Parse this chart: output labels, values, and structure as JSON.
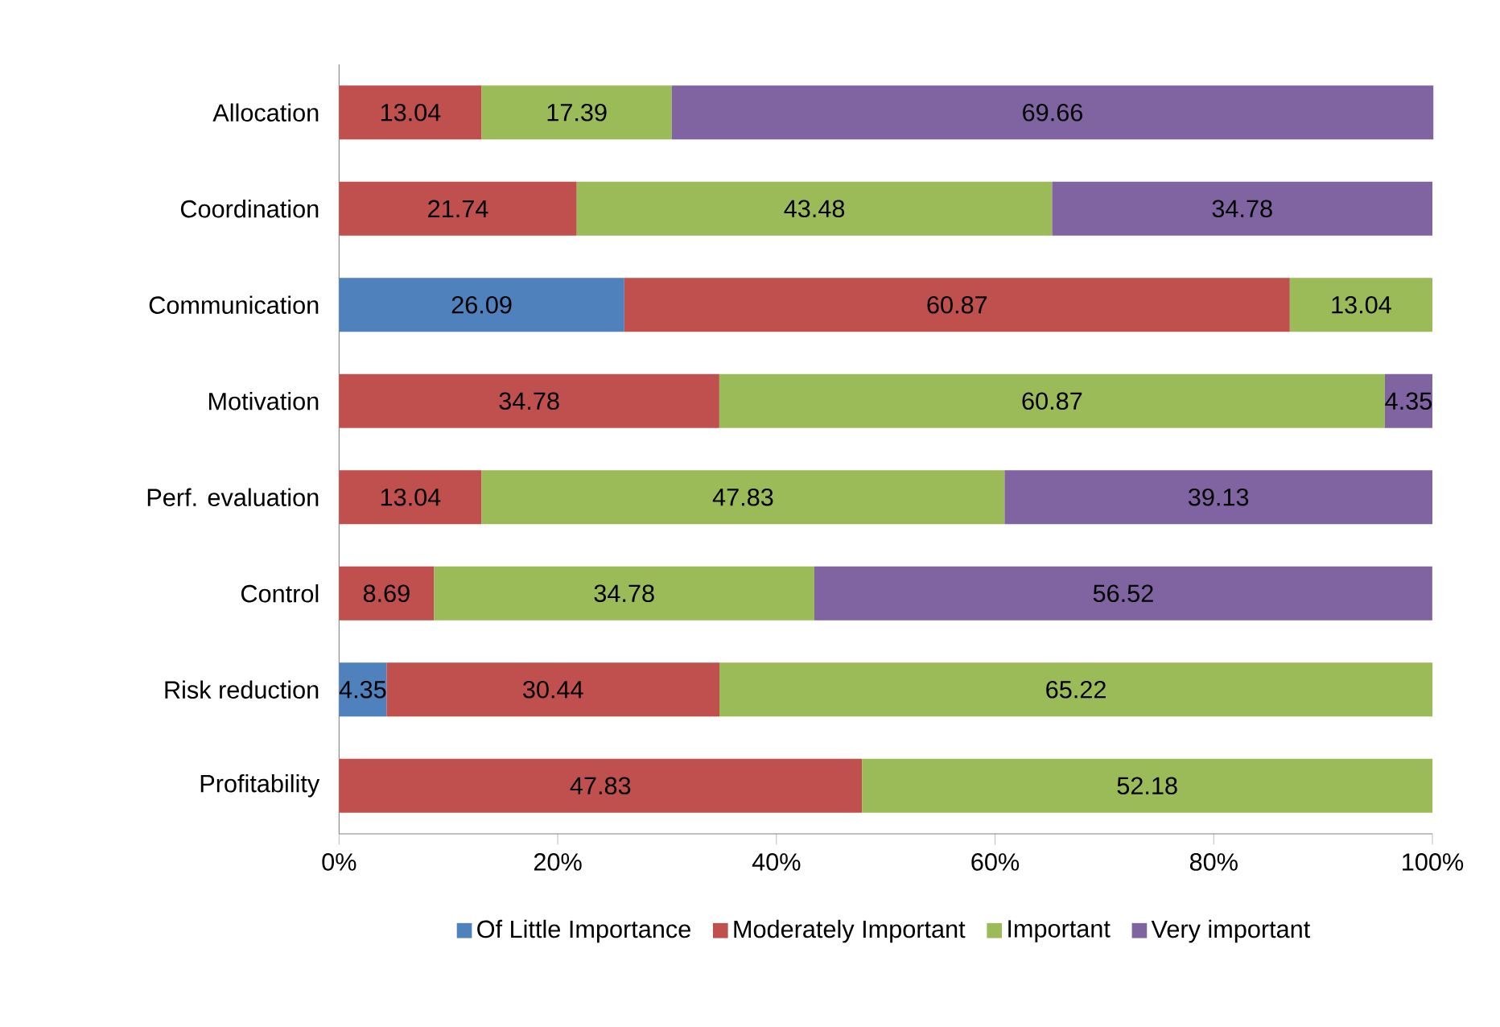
{
  "chart_data": {
    "type": "bar",
    "orientation": "horizontal",
    "stacked": true,
    "data_labels": true,
    "legend": "bottom",
    "grid": false,
    "categories": [
      "Allocation",
      "Coordination",
      "Communication",
      "Motivation",
      "Perf. evaluation",
      "Control",
      "Risk reduction",
      "Profitability"
    ],
    "xlim": [
      0,
      100
    ],
    "xticks": [
      {
        "value": 0,
        "label": "0%"
      },
      {
        "value": 20,
        "label": "20%"
      },
      {
        "value": 40,
        "label": "40%"
      },
      {
        "value": 60,
        "label": "60%"
      },
      {
        "value": 80,
        "label": "80%"
      },
      {
        "value": 100,
        "label": "100%"
      }
    ],
    "series": [
      {
        "name": "Of Little Importance",
        "color": "#4f81bd",
        "values": [
          null,
          null,
          26.09,
          null,
          null,
          null,
          4.35,
          null
        ]
      },
      {
        "name": "Moderately Important",
        "color": "#c0504d",
        "values": [
          13.04,
          21.74,
          60.87,
          34.78,
          13.04,
          8.69,
          30.44,
          47.83
        ]
      },
      {
        "name": "Important",
        "color": "#9bbb59",
        "values": [
          17.39,
          43.48,
          13.04,
          60.87,
          47.83,
          34.78,
          65.22,
          52.18
        ]
      },
      {
        "name": "Very important",
        "color": "#8064a2",
        "values": [
          69.66,
          34.78,
          null,
          4.35,
          39.13,
          56.52,
          null,
          null
        ]
      }
    ]
  }
}
